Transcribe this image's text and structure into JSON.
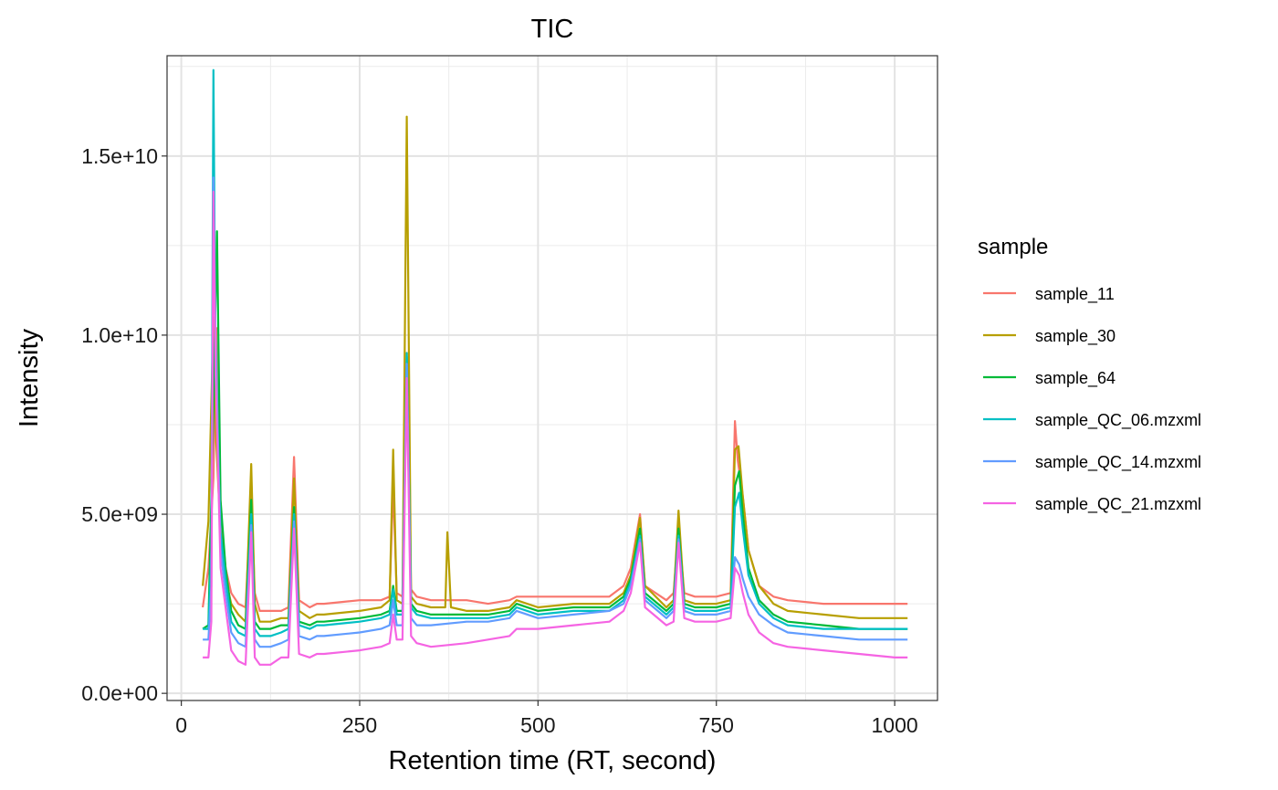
{
  "chart_data": {
    "type": "line",
    "title": "TIC",
    "xlabel": "Retention time (RT, second)",
    "ylabel": "Intensity",
    "xlim": [
      -20,
      1060
    ],
    "ylim": [
      -200000000,
      17800000000
    ],
    "x_ticks": [
      0,
      250,
      500,
      750,
      1000
    ],
    "x_tick_labels": [
      "0",
      "250",
      "500",
      "750",
      "1000"
    ],
    "y_ticks": [
      0,
      5000000000,
      10000000000,
      15000000000
    ],
    "y_tick_labels": [
      "0.0e+00",
      "5.0e+09",
      "1.0e+10",
      "1.5e+10"
    ],
    "grid": true,
    "legend": {
      "title": "sample",
      "position": "right"
    },
    "series": [
      {
        "name": "sample_11",
        "color": "#F8766D",
        "x": [
          30,
          38,
          45,
          49,
          55,
          62,
          70,
          80,
          90,
          98,
          103,
          110,
          125,
          140,
          150,
          158,
          165,
          180,
          190,
          200,
          250,
          280,
          292,
          297,
          302,
          310,
          316,
          322,
          330,
          350,
          370,
          400,
          430,
          460,
          470,
          500,
          550,
          600,
          620,
          630,
          643,
          650,
          680,
          690,
          697,
          705,
          720,
          750,
          770,
          776,
          780,
          787,
          795,
          810,
          830,
          850,
          900,
          950,
          1000,
          1018
        ],
        "values": [
          2400000000.0,
          3500000000.0,
          6000000000.0,
          10200000000.0,
          5000000000.0,
          3500000000.0,
          2800000000.0,
          2500000000.0,
          2400000000.0,
          5600000000.0,
          2800000000.0,
          2300000000.0,
          2300000000.0,
          2300000000.0,
          2400000000.0,
          6600000000.0,
          2600000000.0,
          2400000000.0,
          2500000000.0,
          2500000000.0,
          2600000000.0,
          2600000000.0,
          2700000000.0,
          5800000000.0,
          2800000000.0,
          2700000000.0,
          9500000000.0,
          2900000000.0,
          2700000000.0,
          2600000000.0,
          2600000000.0,
          2600000000.0,
          2500000000.0,
          2600000000.0,
          2700000000.0,
          2700000000.0,
          2700000000.0,
          2700000000.0,
          3000000000.0,
          3500000000.0,
          5000000000.0,
          3000000000.0,
          2600000000.0,
          2800000000.0,
          4600000000.0,
          2800000000.0,
          2700000000.0,
          2700000000.0,
          2800000000.0,
          7600000000.0,
          6500000000.0,
          5500000000.0,
          4000000000.0,
          3000000000.0,
          2700000000.0,
          2600000000.0,
          2500000000.0,
          2500000000.0,
          2500000000.0,
          2500000000.0
        ]
      },
      {
        "name": "sample_30",
        "color": "#B79F00",
        "x": [
          30,
          38,
          45,
          49,
          55,
          62,
          70,
          80,
          90,
          98,
          103,
          110,
          125,
          140,
          150,
          158,
          165,
          180,
          190,
          200,
          250,
          280,
          292,
          297,
          302,
          310,
          316,
          322,
          330,
          350,
          370,
          373,
          378,
          400,
          430,
          460,
          470,
          500,
          550,
          600,
          620,
          630,
          643,
          650,
          680,
          690,
          697,
          705,
          720,
          750,
          770,
          776,
          781,
          787,
          795,
          810,
          830,
          850,
          900,
          950,
          1000,
          1018
        ],
        "values": [
          3000000000.0,
          4800000000.0,
          10500000000.0,
          7000000000.0,
          4500000000.0,
          3200000000.0,
          2500000000.0,
          2200000000.0,
          2000000000.0,
          6400000000.0,
          2500000000.0,
          2000000000.0,
          2000000000.0,
          2100000000.0,
          2100000000.0,
          6000000000.0,
          2300000000.0,
          2100000000.0,
          2200000000.0,
          2200000000.0,
          2300000000.0,
          2400000000.0,
          2600000000.0,
          6800000000.0,
          2600000000.0,
          2500000000.0,
          16100000000.0,
          2700000000.0,
          2500000000.0,
          2400000000.0,
          2400000000.0,
          4500000000.0,
          2400000000.0,
          2300000000.0,
          2300000000.0,
          2400000000.0,
          2600000000.0,
          2400000000.0,
          2500000000.0,
          2500000000.0,
          2800000000.0,
          3300000000.0,
          4900000000.0,
          3000000000.0,
          2400000000.0,
          2600000000.0,
          5100000000.0,
          2600000000.0,
          2500000000.0,
          2500000000.0,
          2600000000.0,
          6800000000.0,
          6900000000.0,
          5500000000.0,
          4000000000.0,
          3000000000.0,
          2500000000.0,
          2300000000.0,
          2200000000.0,
          2100000000.0,
          2100000000.0,
          2100000000.0
        ]
      },
      {
        "name": "sample_64",
        "color": "#00BA38",
        "x": [
          30,
          38,
          45,
          50,
          55,
          62,
          70,
          80,
          90,
          98,
          103,
          110,
          125,
          140,
          150,
          158,
          165,
          180,
          190,
          200,
          250,
          280,
          292,
          297,
          302,
          310,
          316,
          322,
          330,
          350,
          400,
          430,
          460,
          470,
          500,
          550,
          600,
          620,
          630,
          643,
          650,
          680,
          690,
          697,
          705,
          720,
          750,
          770,
          776,
          782,
          787,
          795,
          810,
          830,
          850,
          900,
          950,
          1000,
          1018
        ],
        "values": [
          1800000000.0,
          1900000000.0,
          8000000000.0,
          12900000000.0,
          5400000000.0,
          3500000000.0,
          2300000000.0,
          1900000000.0,
          1800000000.0,
          5400000000.0,
          2000000000.0,
          1800000000.0,
          1800000000.0,
          1900000000.0,
          1900000000.0,
          5200000000.0,
          2000000000.0,
          1900000000.0,
          2000000000.0,
          2000000000.0,
          2100000000.0,
          2200000000.0,
          2300000000.0,
          3000000000.0,
          2300000000.0,
          2300000000.0,
          9400000000.0,
          2500000000.0,
          2300000000.0,
          2200000000.0,
          2200000000.0,
          2200000000.0,
          2300000000.0,
          2500000000.0,
          2300000000.0,
          2400000000.0,
          2400000000.0,
          2700000000.0,
          3200000000.0,
          4600000000.0,
          2800000000.0,
          2300000000.0,
          2500000000.0,
          4600000000.0,
          2500000000.0,
          2400000000.0,
          2400000000.0,
          2500000000.0,
          5800000000.0,
          6200000000.0,
          5000000000.0,
          3500000000.0,
          2600000000.0,
          2200000000.0,
          2000000000.0,
          1900000000.0,
          1800000000.0,
          1800000000.0,
          1800000000.0
        ]
      },
      {
        "name": "sample_QC_06.mzxml",
        "color": "#00BFC4",
        "x": [
          30,
          38,
          42,
          45,
          48,
          55,
          62,
          70,
          80,
          90,
          98,
          103,
          110,
          125,
          140,
          150,
          158,
          165,
          180,
          190,
          200,
          250,
          280,
          292,
          297,
          302,
          310,
          316,
          322,
          330,
          350,
          400,
          430,
          460,
          470,
          500,
          550,
          600,
          620,
          630,
          643,
          650,
          680,
          690,
          697,
          705,
          720,
          750,
          770,
          776,
          782,
          787,
          795,
          810,
          830,
          850,
          900,
          950,
          1000,
          1018
        ],
        "values": [
          1800000000.0,
          1800000000.0,
          4000000000.0,
          17400000000.0,
          9000000000.0,
          4500000000.0,
          3200000000.0,
          2000000000.0,
          1700000000.0,
          1600000000.0,
          5000000000.0,
          1800000000.0,
          1600000000.0,
          1600000000.0,
          1700000000.0,
          1800000000.0,
          5000000000.0,
          1900000000.0,
          1800000000.0,
          1900000000.0,
          1900000000.0,
          2000000000.0,
          2100000000.0,
          2200000000.0,
          2900000000.0,
          2200000000.0,
          2200000000.0,
          9500000000.0,
          2400000000.0,
          2200000000.0,
          2100000000.0,
          2100000000.0,
          2100000000.0,
          2200000000.0,
          2400000000.0,
          2200000000.0,
          2300000000.0,
          2300000000.0,
          2600000000.0,
          3100000000.0,
          4400000000.0,
          2700000000.0,
          2200000000.0,
          2400000000.0,
          4400000000.0,
          2400000000.0,
          2300000000.0,
          2300000000.0,
          2400000000.0,
          5200000000.0,
          5600000000.0,
          4600000000.0,
          3300000000.0,
          2500000000.0,
          2100000000.0,
          1900000000.0,
          1800000000.0,
          1800000000.0,
          1800000000.0,
          1800000000.0
        ]
      },
      {
        "name": "sample_QC_14.mzxml",
        "color": "#619CFF",
        "x": [
          30,
          38,
          42,
          45,
          48,
          55,
          62,
          70,
          80,
          90,
          98,
          103,
          110,
          125,
          140,
          150,
          158,
          165,
          180,
          190,
          200,
          250,
          280,
          292,
          297,
          302,
          310,
          316,
          322,
          330,
          350,
          400,
          430,
          460,
          470,
          500,
          550,
          600,
          620,
          630,
          643,
          650,
          680,
          690,
          697,
          705,
          720,
          750,
          770,
          776,
          782,
          787,
          795,
          810,
          830,
          850,
          900,
          950,
          1000,
          1018
        ],
        "values": [
          1500000000.0,
          1500000000.0,
          3000000000.0,
          14400000000.0,
          10000000000.0,
          4000000000.0,
          2800000000.0,
          1700000000.0,
          1400000000.0,
          1300000000.0,
          4700000000.0,
          1500000000.0,
          1300000000.0,
          1300000000.0,
          1400000000.0,
          1500000000.0,
          4800000000.0,
          1600000000.0,
          1500000000.0,
          1600000000.0,
          1600000000.0,
          1700000000.0,
          1800000000.0,
          1900000000.0,
          2600000000.0,
          1900000000.0,
          1900000000.0,
          9200000000.0,
          2100000000.0,
          1900000000.0,
          1900000000.0,
          2000000000.0,
          2000000000.0,
          2100000000.0,
          2300000000.0,
          2100000000.0,
          2200000000.0,
          2300000000.0,
          2500000000.0,
          3000000000.0,
          4300000000.0,
          2600000000.0,
          2100000000.0,
          2300000000.0,
          4300000000.0,
          2300000000.0,
          2200000000.0,
          2200000000.0,
          2300000000.0,
          3800000000.0,
          3600000000.0,
          3200000000.0,
          2700000000.0,
          2200000000.0,
          1900000000.0,
          1700000000.0,
          1600000000.0,
          1500000000.0,
          1500000000.0,
          1500000000.0
        ]
      },
      {
        "name": "sample_QC_21.mzxml",
        "color": "#F564E3",
        "x": [
          30,
          38,
          42,
          45,
          48,
          55,
          62,
          70,
          80,
          90,
          98,
          103,
          110,
          125,
          140,
          150,
          158,
          165,
          180,
          190,
          200,
          250,
          280,
          292,
          297,
          302,
          310,
          316,
          322,
          330,
          350,
          400,
          430,
          460,
          470,
          500,
          550,
          600,
          620,
          630,
          643,
          650,
          680,
          690,
          697,
          705,
          720,
          750,
          770,
          776,
          782,
          787,
          795,
          810,
          830,
          850,
          900,
          950,
          1000,
          1018
        ],
        "values": [
          1000000000.0,
          1000000000.0,
          2000000000.0,
          14000000000.0,
          9000000000.0,
          3500000000.0,
          2400000000.0,
          1200000000.0,
          900000000.0,
          800000000.0,
          4500000000.0,
          1000000000.0,
          800000000.0,
          800000000.0,
          1000000000.0,
          1000000000.0,
          4600000000.0,
          1100000000.0,
          1000000000.0,
          1100000000.0,
          1100000000.0,
          1200000000.0,
          1300000000.0,
          1400000000.0,
          2200000000.0,
          1500000000.0,
          1500000000.0,
          8800000000.0,
          1600000000.0,
          1400000000.0,
          1300000000.0,
          1400000000.0,
          1500000000.0,
          1600000000.0,
          1800000000.0,
          1800000000.0,
          1900000000.0,
          2000000000.0,
          2300000000.0,
          2800000000.0,
          4200000000.0,
          2400000000.0,
          1900000000.0,
          2000000000.0,
          4200000000.0,
          2100000000.0,
          2000000000.0,
          2000000000.0,
          2100000000.0,
          3500000000.0,
          3300000000.0,
          2800000000.0,
          2200000000.0,
          1700000000.0,
          1400000000.0,
          1300000000.0,
          1200000000.0,
          1100000000.0,
          1000000000.0,
          1000000000.0
        ]
      }
    ]
  }
}
